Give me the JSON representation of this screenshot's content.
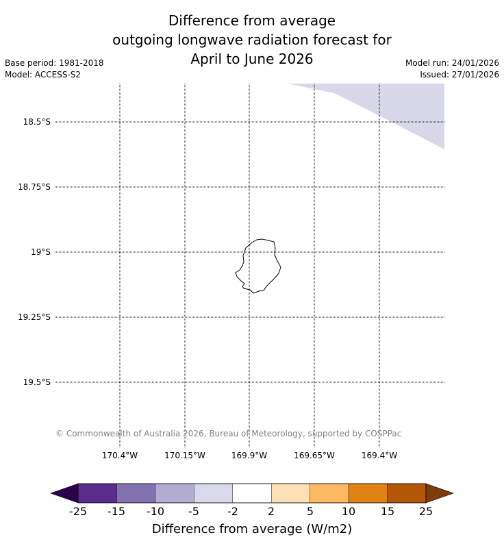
{
  "title": {
    "line1": "Difference from average",
    "line2": "outgoing longwave radiation forecast for",
    "line3": "April to June 2026"
  },
  "meta": {
    "base_period": "Base period: 1981-2018",
    "model": "Model: ACCESS-S2",
    "model_run": "Model run: 24/01/2026",
    "issued": "Issued: 27/01/2026"
  },
  "map": {
    "latitude_labels": [
      "18.5°S",
      "18.75°S",
      "19°S",
      "19.25°S",
      "19.5°S"
    ],
    "longitude_labels": [
      "170.4°W",
      "170.15°W",
      "169.9°W",
      "169.65°W",
      "169.4°W"
    ],
    "copyright": "© Commonwealth of Australia 2026, Bureau of Meteorology, supported by COSPPac",
    "island_outline_color": "#000000",
    "shaded_region_color": "#d8d8e8",
    "shaded_region_category": "-5 to -2"
  },
  "colorbar": {
    "label": "Difference from average (W/m2)",
    "ticks": [
      "-25",
      "-15",
      "-10",
      "-5",
      "-2",
      "2",
      "5",
      "10",
      "15",
      "25"
    ],
    "under_color": "#2d004b",
    "over_color": "#7f3b08",
    "bins": [
      "#5a2c8c",
      "#8273b0",
      "#b2abd2",
      "#d8daeb",
      "#ffffff",
      "#fee0b6",
      "#fdb863",
      "#e08214",
      "#b35806"
    ]
  }
}
